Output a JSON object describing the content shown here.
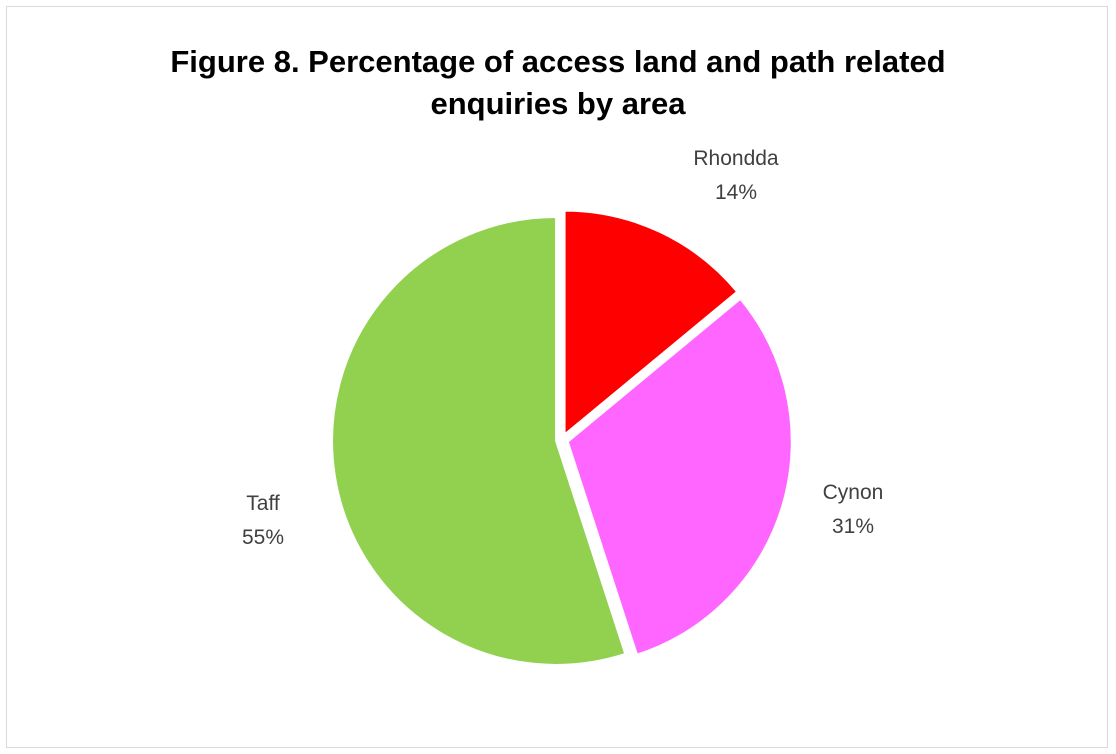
{
  "chart_data": {
    "type": "pie",
    "title": [
      "Figure 8. Percentage of access land and path related",
      "enquiries by area"
    ],
    "slices": [
      {
        "label": "Rhondda",
        "value": 14,
        "display": "14%",
        "color": "#ff0000"
      },
      {
        "label": "Cynon",
        "value": 31,
        "display": "31%",
        "color": "#ff66ff"
      },
      {
        "label": "Taff",
        "value": 55,
        "display": "55%",
        "color": "#92d050"
      }
    ],
    "start": "12 o'clock",
    "direction": "clockwise",
    "exploded": true,
    "legend": "none",
    "data_labels": "outside"
  }
}
